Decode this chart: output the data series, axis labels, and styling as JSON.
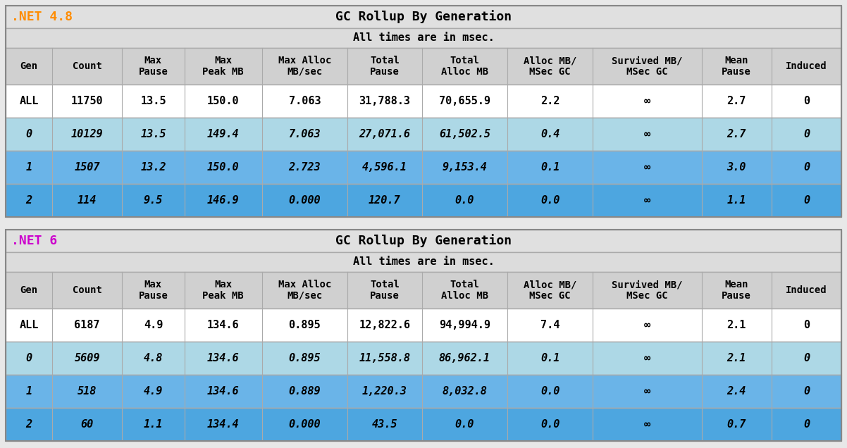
{
  "tables": [
    {
      "version_label": ".NET 4.8",
      "version_color": "#FF8C00",
      "title": "GC Rollup By Generation",
      "subtitle": "All times are in msec.",
      "headers": [
        "Gen",
        "Count",
        "Max\nPause",
        "Max\nPeak MB",
        "Max Alloc\nMB/sec",
        "Total\nPause",
        "Total\nAlloc MB",
        "Alloc MB/\nMSec GC",
        "Survived MB/\nMSec GC",
        "Mean\nPause",
        "Induced"
      ],
      "rows": [
        [
          "ALL",
          "11750",
          "13.5",
          "150.0",
          "7.063",
          "31,788.3",
          "70,655.9",
          "2.2",
          "∞",
          "2.7",
          "0"
        ],
        [
          "0",
          "10129",
          "13.5",
          "149.4",
          "7.063",
          "27,071.6",
          "61,502.5",
          "0.4",
          "∞",
          "2.7",
          "0"
        ],
        [
          "1",
          "1507",
          "13.2",
          "150.0",
          "2.723",
          "4,596.1",
          "9,153.4",
          "0.1",
          "∞",
          "3.0",
          "0"
        ],
        [
          "2",
          "114",
          "9.5",
          "146.9",
          "0.000",
          "120.7",
          "0.0",
          "0.0",
          "∞",
          "1.1",
          "0"
        ]
      ],
      "row_colors": [
        "#FFFFFF",
        "#ADD8E6",
        "#6AB4E8",
        "#4DA6E0"
      ]
    },
    {
      "version_label": ".NET 6",
      "version_color": "#CC00CC",
      "title": "GC Rollup By Generation",
      "subtitle": "All times are in msec.",
      "headers": [
        "Gen",
        "Count",
        "Max\nPause",
        "Max\nPeak MB",
        "Max Alloc\nMB/sec",
        "Total\nPause",
        "Total\nAlloc MB",
        "Alloc MB/\nMSec GC",
        "Survived MB/\nMSec GC",
        "Mean\nPause",
        "Induced"
      ],
      "rows": [
        [
          "ALL",
          "6187",
          "4.9",
          "134.6",
          "0.895",
          "12,822.6",
          "94,994.9",
          "7.4",
          "∞",
          "2.1",
          "0"
        ],
        [
          "0",
          "5609",
          "4.8",
          "134.6",
          "0.895",
          "11,558.8",
          "86,962.1",
          "0.1",
          "∞",
          "2.1",
          "0"
        ],
        [
          "1",
          "518",
          "4.9",
          "134.6",
          "0.889",
          "1,220.3",
          "8,032.8",
          "0.0",
          "∞",
          "2.4",
          "0"
        ],
        [
          "2",
          "60",
          "1.1",
          "134.4",
          "0.000",
          "43.5",
          "0.0",
          "0.0",
          "∞",
          "0.7",
          "0"
        ]
      ],
      "row_colors": [
        "#FFFFFF",
        "#ADD8E6",
        "#6AB4E8",
        "#4DA6E0"
      ]
    }
  ],
  "col_widths_rel": [
    3.0,
    4.5,
    4.0,
    5.0,
    5.5,
    4.8,
    5.5,
    5.5,
    7.0,
    4.5,
    4.5
  ],
  "bg_color": "#E8E8E8",
  "title_bg": "#E0E0E0",
  "subtitle_bg": "#DCDCDC",
  "header_bg": "#D0D0D0",
  "border_color": "#AAAAAA",
  "outer_border_color": "#888888",
  "text_color": "#000000",
  "title_fontsize": 13,
  "subtitle_fontsize": 11,
  "header_fontsize": 10,
  "data_fontsize": 11,
  "version_fontsize": 13
}
